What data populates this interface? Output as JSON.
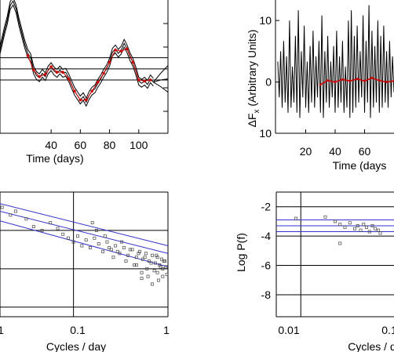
{
  "chart_data": [
    {
      "type": "line",
      "panel": "top-left",
      "xlabel": "Time (days)",
      "x_ticks": [
        40,
        60,
        80,
        100
      ],
      "xlim": [
        5,
        120
      ],
      "ylim": [
        -6,
        6
      ],
      "y_gridlines": [
        0.8,
        -0.2,
        -1.2
      ],
      "gridlines_color": "#000000",
      "series": [
        {
          "role": "data",
          "color": "#000000",
          "x": [
            5,
            8,
            10,
            12,
            14,
            16,
            18,
            20,
            22,
            24,
            26,
            28,
            30,
            32,
            34,
            36,
            38,
            40,
            42,
            44,
            46,
            48,
            50,
            52,
            54,
            56,
            58,
            60,
            62,
            64,
            66,
            68,
            70,
            72,
            74,
            76,
            78,
            80,
            82,
            84,
            86,
            88,
            90,
            92,
            94,
            96,
            98,
            100,
            102,
            104,
            106,
            108,
            110
          ],
          "y": [
            1.5,
            3.2,
            4.2,
            5.5,
            5.9,
            5.2,
            4.0,
            3.0,
            2.0,
            1.2,
            0.8,
            -0.3,
            -0.8,
            -1.0,
            -0.6,
            -0.9,
            -0.3,
            0.0,
            -0.4,
            -0.6,
            -0.3,
            -0.6,
            -0.5,
            -1.0,
            -1.6,
            -2.2,
            -2.6,
            -3.0,
            -2.7,
            -3.2,
            -2.6,
            -2.2,
            -2.0,
            -1.5,
            -1.1,
            -0.6,
            -0.2,
            0.4,
            1.3,
            1.6,
            1.2,
            1.5,
            2.1,
            1.6,
            0.9,
            0.4,
            -0.4,
            -1.3,
            -1.5,
            -1.3,
            -1.6,
            -1.1,
            -1.4
          ]
        },
        {
          "role": "fit",
          "color": "#cc0000",
          "x": [
            24,
            28,
            32,
            36,
            40,
            44,
            48,
            52,
            56,
            60,
            64,
            68,
            72,
            76,
            80,
            84,
            88,
            92,
            96,
            100,
            104,
            108
          ],
          "y": [
            1.0,
            -0.3,
            -0.9,
            -0.7,
            0.0,
            -0.5,
            -0.5,
            -1.1,
            -2.2,
            -3.0,
            -3.0,
            -2.2,
            -1.4,
            -0.6,
            0.4,
            1.5,
            1.4,
            1.6,
            0.4,
            -1.2,
            -1.3,
            -1.2
          ]
        },
        {
          "role": "extrapolation",
          "color": "#000000",
          "x": [
            110,
            115,
            120
          ],
          "y": [
            -1.4,
            -1.2,
            -1.1
          ]
        }
      ]
    },
    {
      "type": "line",
      "panel": "top-right",
      "ylabel_main": "ΔF",
      "ylabel_sub": "x",
      "ylabel_rest": " (Arbitrary Units)",
      "xlabel": "Time (days",
      "x_ticks": [
        20,
        40,
        60
      ],
      "y_ticks": [
        "10",
        "0",
        "10"
      ],
      "xlim": [
        0,
        80
      ],
      "ylim": [
        -10,
        16
      ],
      "series": [
        {
          "role": "data",
          "color": "#000000",
          "x": [
            1,
            2,
            3,
            4,
            5,
            6,
            7,
            8,
            9,
            10,
            11,
            12,
            13,
            14,
            15,
            16,
            17,
            18,
            19,
            20,
            21,
            22,
            23,
            24,
            25,
            26,
            27,
            28,
            29,
            30,
            31,
            32,
            33,
            34,
            35,
            36,
            37,
            38,
            39,
            40,
            41,
            42,
            43,
            44,
            45,
            46,
            47,
            48,
            49,
            50,
            51,
            52,
            53,
            54,
            55,
            56,
            57,
            58,
            59,
            60,
            61,
            62,
            63,
            64,
            65,
            66,
            67,
            68,
            69,
            70,
            71,
            72,
            73,
            74,
            75,
            76,
            77,
            78,
            79,
            80
          ],
          "y": [
            4,
            -3,
            6,
            -5,
            8,
            -4,
            5,
            -6,
            12,
            -5,
            3,
            -4,
            9,
            -6,
            14,
            -7,
            6,
            -3,
            11,
            -5,
            4,
            -6,
            7,
            -4,
            10,
            -5,
            5,
            -3,
            8,
            -6,
            13,
            -7,
            6,
            -4,
            9,
            -5,
            4,
            -3,
            7,
            -6,
            10,
            -5,
            5,
            -4,
            8,
            -6,
            3,
            -5,
            12,
            -7,
            14,
            -6,
            9,
            -5,
            11,
            -4,
            6,
            -3,
            13,
            -6,
            8,
            -4,
            15,
            -7,
            10,
            -5,
            7,
            -4,
            12,
            -6,
            9,
            -5,
            11,
            -4,
            6,
            -5,
            8,
            -3,
            5,
            -2
          ]
        },
        {
          "role": "fit",
          "color": "#cc0000",
          "x": [
            30,
            35,
            40,
            45,
            50,
            55,
            60,
            65,
            70,
            75,
            80
          ],
          "y": [
            -0.5,
            0.3,
            0.0,
            0.5,
            0.2,
            0.6,
            0.2,
            0.8,
            0.3,
            0.0,
            0.2
          ]
        }
      ]
    },
    {
      "type": "scatter",
      "panel": "bottom-left",
      "xlabel": "Cycles / day",
      "x_tick_labels": [
        "1",
        "0.1",
        "1"
      ],
      "xlim": [
        -1.6,
        0
      ],
      "ylim": [
        -8.5,
        -2
      ],
      "y_gridlines": [
        -2,
        -4,
        -6,
        -8
      ],
      "x_gridlines": [
        -0.9
      ],
      "fit_lines": [
        {
          "color": "#3333cc",
          "x": [
            -1.6,
            0
          ],
          "y": [
            -3.0,
            -5.2
          ]
        },
        {
          "color": "#3333cc",
          "x": [
            -1.6,
            0
          ],
          "y": [
            -3.5,
            -5.9
          ]
        },
        {
          "color": "#3333cc",
          "x": [
            -1.6,
            0
          ],
          "y": [
            -2.6,
            -4.8
          ]
        }
      ],
      "points": {
        "marker": "open-square",
        "x": [
          -1.58,
          -1.5,
          -1.45,
          -1.35,
          -1.28,
          -1.2,
          -1.12,
          -1.05,
          -1.0,
          -0.95,
          -0.9,
          -0.86,
          -0.82,
          -0.78,
          -0.74,
          -0.7,
          -0.66,
          -0.62,
          -0.58,
          -0.54,
          -0.5,
          -0.46,
          -0.42,
          -0.38,
          -0.34,
          -0.3,
          -0.27,
          -0.24,
          -0.21,
          -0.18,
          -0.15,
          -0.12,
          -0.1,
          -0.08,
          -0.06,
          -0.04,
          -0.02,
          -0.72,
          -0.68,
          -0.6,
          -0.56,
          -0.52,
          -0.48,
          -0.44,
          -0.4,
          -0.36,
          -0.32,
          -0.28,
          -0.25,
          -0.22,
          -0.19,
          -0.16,
          -0.13,
          -0.11,
          -0.09,
          -0.07,
          -0.05,
          -0.03,
          -0.01,
          -0.3,
          -0.2,
          -0.1,
          -0.25,
          -0.15,
          -0.05
        ],
        "y": [
          -2.8,
          -3.2,
          -3.0,
          -3.4,
          -3.8,
          -4.0,
          -3.6,
          -3.9,
          -4.2,
          -4.4,
          -4.6,
          -4.3,
          -4.8,
          -4.5,
          -4.9,
          -4.4,
          -4.7,
          -5.1,
          -4.6,
          -5.0,
          -4.8,
          -5.2,
          -4.9,
          -5.3,
          -5.0,
          -5.4,
          -5.1,
          -5.5,
          -5.2,
          -5.6,
          -5.3,
          -5.7,
          -5.4,
          -5.8,
          -5.5,
          -5.6,
          -5.9,
          -3.6,
          -4.0,
          -4.3,
          -4.9,
          -5.4,
          -5.1,
          -4.6,
          -5.6,
          -5.0,
          -5.8,
          -5.2,
          -6.2,
          -5.4,
          -6.4,
          -5.7,
          -6.1,
          -5.3,
          -6.6,
          -5.9,
          -6.0,
          -5.6,
          -6.3,
          -5.8,
          -6.0,
          -6.2,
          -6.5,
          -6.8,
          -6.4
        ]
      }
    },
    {
      "type": "scatter",
      "panel": "bottom-right",
      "ylabel": "Log P(f)",
      "xlabel": "Cycles / d",
      "y_ticks": [
        "-2",
        "-4",
        "-6",
        "-8"
      ],
      "x_tick_labels": [
        "0.01",
        "0.1"
      ],
      "xlim": [
        -2.1,
        -0.9
      ],
      "ylim": [
        -9.5,
        -1
      ],
      "y_gridlines": [
        -2,
        -4,
        -6,
        -8
      ],
      "x_gridlines": [
        -1.85
      ],
      "fit_lines": [
        {
          "color": "#3333cc",
          "x": [
            -2.1,
            -0.9
          ],
          "y": [
            -2.9,
            -2.9
          ]
        },
        {
          "color": "#3333cc",
          "x": [
            -2.1,
            -0.9
          ],
          "y": [
            -3.3,
            -3.3
          ]
        },
        {
          "color": "#3333cc",
          "x": [
            -2.1,
            -0.9
          ],
          "y": [
            -3.7,
            -3.7
          ]
        }
      ],
      "points": {
        "marker": "open-square",
        "x": [
          -1.9,
          -1.6,
          -1.5,
          -1.45,
          -1.4,
          -1.35,
          -1.3,
          -1.27,
          -1.24,
          -1.21,
          -1.18,
          -1.15,
          -1.12,
          -1.09,
          -1.06,
          -1.04,
          -1.45
        ],
        "y": [
          -2.8,
          -2.7,
          -3.0,
          -3.2,
          -3.4,
          -3.1,
          -3.5,
          -3.3,
          -3.6,
          -3.2,
          -3.4,
          -3.7,
          -3.3,
          -3.5,
          -3.6,
          -3.8,
          -4.5
        ]
      }
    }
  ]
}
